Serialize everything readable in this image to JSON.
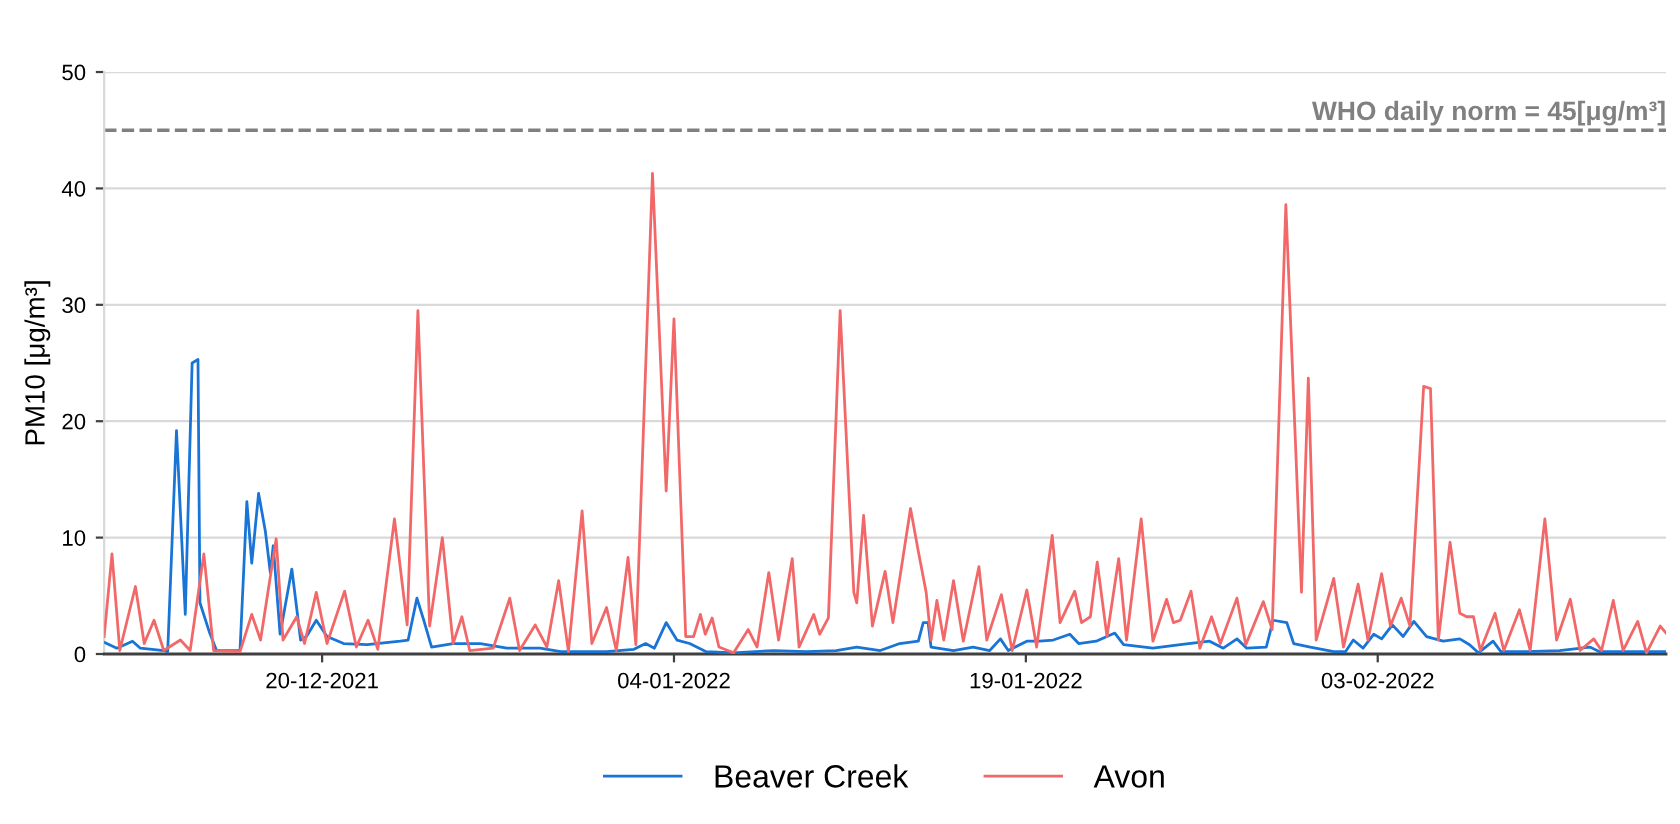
{
  "chart_data": {
    "type": "line",
    "ylabel": "PM10 [μg/m³]",
    "xlim": [
      "2021-12-10T17:00",
      "2022-02-15T07:00"
    ],
    "xticks": [
      {
        "value": "2021-12-20",
        "label": "20-12-2021"
      },
      {
        "value": "2022-01-04",
        "label": "04-01-2022"
      },
      {
        "value": "2022-01-19",
        "label": "19-01-2022"
      },
      {
        "value": "2022-02-03",
        "label": "03-02-2022"
      }
    ],
    "ylim": [
      0,
      50
    ],
    "yticks": [
      0,
      10,
      20,
      30,
      40,
      50
    ],
    "grid": "y",
    "legend": "bottom",
    "marker": "none",
    "line_style": "solid",
    "ref_lines": [
      {
        "axis": "y",
        "value": 45,
        "label": "WHO daily norm = 45[μg/m³]",
        "color": "#808080",
        "line_style": "dashed"
      }
    ],
    "series": [
      {
        "name": "Beaver Creek",
        "color": "#1874d6",
        "x": [
          "2021-12-10T17:00",
          "2021-12-11T06:00",
          "2021-12-11T22:00",
          "2021-12-12T06:00",
          "2021-12-13T06:00",
          "2021-12-13T10:00",
          "2021-12-13T19:00",
          "2021-12-14T04:00",
          "2021-12-14T11:00",
          "2021-12-14T17:00",
          "2021-12-14T19:00",
          "2021-12-15T05:00",
          "2021-12-15T12:00",
          "2021-12-16T12:00",
          "2021-12-16T19:00",
          "2021-12-17T00:00",
          "2021-12-17T07:00",
          "2021-12-17T14:00",
          "2021-12-17T19:00",
          "2021-12-17T22:00",
          "2021-12-18T05:00",
          "2021-12-18T17:00",
          "2021-12-19T02:00",
          "2021-12-19T08:00",
          "2021-12-19T18:00",
          "2021-12-20T05:00",
          "2021-12-20T22:00",
          "2021-12-21T22:00",
          "2021-12-23T08:00",
          "2021-12-23T16:00",
          "2021-12-24T01:00",
          "2021-12-24T08:00",
          "2021-12-24T16:00",
          "2021-12-25T14:00",
          "2021-12-26T18:00",
          "2021-12-27T21:00",
          "2021-12-29T07:00",
          "2021-12-30T04:00",
          "2022-01-01T03:00",
          "2022-01-02T07:00",
          "2022-01-02T19:00",
          "2022-01-03T04:00",
          "2022-01-03T16:00",
          "2022-01-04T03:00",
          "2022-01-04T16:00",
          "2022-01-05T09:00",
          "2022-01-06T13:00",
          "2022-01-08T06:00",
          "2022-01-09T16:00",
          "2022-01-10T22:00",
          "2022-01-11T19:00",
          "2022-01-12T19:00",
          "2022-01-13T15:00",
          "2022-01-14T10:00",
          "2022-01-14T15:00",
          "2022-01-14T20:00",
          "2022-01-14T23:00",
          "2022-01-15T22:00",
          "2022-01-16T18:00",
          "2022-01-17T11:00",
          "2022-01-17T22:00",
          "2022-01-18T06:00",
          "2022-01-19T01:00",
          "2022-01-19T14:00",
          "2022-01-20T04:00",
          "2022-01-20T21:00",
          "2022-01-21T06:00",
          "2022-01-22T00:00",
          "2022-01-22T19:00",
          "2022-01-23T04:00",
          "2022-01-24T10:00",
          "2022-01-25T14:00",
          "2022-01-26T20:00",
          "2022-01-27T10:00",
          "2022-01-28T00:00",
          "2022-01-28T10:00",
          "2022-01-29T06:00",
          "2022-01-29T13:00",
          "2022-01-30T03:00",
          "2022-01-30T10:00",
          "2022-01-31T03:00",
          "2022-02-01T03:00",
          "2022-02-01T15:00",
          "2022-02-01T23:00",
          "2022-02-02T09:00",
          "2022-02-02T20:00",
          "2022-02-03T04:00",
          "2022-02-03T15:00",
          "2022-02-04T02:00",
          "2022-02-04T13:00",
          "2022-02-05T02:00",
          "2022-02-05T19:00",
          "2022-02-06T12:00",
          "2022-02-06T22:00",
          "2022-02-07T07:00",
          "2022-02-07T22:00",
          "2022-02-08T06:00",
          "2022-02-09T08:00",
          "2022-02-10T18:00",
          "2022-02-12T01:00",
          "2022-02-12T11:00",
          "2022-02-15T07:00"
        ],
        "values": [
          1.0,
          0.5,
          1.1,
          0.5,
          0.3,
          0.2,
          19.2,
          3.4,
          25.0,
          25.3,
          4.4,
          1.8,
          0.3,
          0.3,
          13.1,
          7.8,
          13.8,
          10.5,
          7.0,
          9.3,
          1.7,
          7.3,
          1.2,
          1.5,
          2.9,
          1.5,
          0.9,
          0.8,
          1.1,
          1.2,
          4.8,
          2.9,
          0.6,
          0.9,
          0.9,
          0.5,
          0.5,
          0.2,
          0.2,
          0.4,
          0.9,
          0.5,
          2.7,
          1.2,
          0.9,
          0.2,
          0.1,
          0.3,
          0.2,
          0.3,
          0.6,
          0.3,
          0.9,
          1.1,
          2.7,
          2.7,
          0.6,
          0.3,
          0.6,
          0.3,
          1.3,
          0.3,
          1.1,
          1.1,
          1.2,
          1.7,
          0.9,
          1.1,
          1.8,
          0.8,
          0.5,
          0.8,
          1.1,
          0.5,
          1.3,
          0.5,
          0.6,
          2.9,
          2.7,
          0.9,
          0.6,
          0.2,
          0.2,
          1.2,
          0.5,
          1.7,
          1.3,
          2.5,
          1.5,
          2.8,
          1.5,
          1.1,
          1.3,
          0.8,
          0.1,
          1.1,
          0.2,
          0.2,
          0.3,
          0.6,
          0.2,
          0.2
        ]
      },
      {
        "name": "Avon",
        "color": "#f26868",
        "x": [
          "2021-12-10T17:00",
          "2021-12-11T01:00",
          "2021-12-11T09:00",
          "2021-12-12T01:00",
          "2021-12-12T10:00",
          "2021-12-12T20:00",
          "2021-12-13T06:00",
          "2021-12-13T23:00",
          "2021-12-14T09:00",
          "2021-12-14T23:00",
          "2021-12-15T09:00",
          "2021-12-16T12:00",
          "2021-12-17T00:00",
          "2021-12-17T09:00",
          "2021-12-18T01:00",
          "2021-12-18T08:00",
          "2021-12-18T22:00",
          "2021-12-19T06:00",
          "2021-12-19T18:00",
          "2021-12-20T05:00",
          "2021-12-20T23:00",
          "2021-12-21T11:00",
          "2021-12-21T23:00",
          "2021-12-22T09:00",
          "2021-12-23T02:00",
          "2021-12-23T15:00",
          "2021-12-24T02:00",
          "2021-12-24T14:00",
          "2021-12-25T03:00",
          "2021-12-25T14:00",
          "2021-12-25T23:00",
          "2021-12-26T07:00",
          "2021-12-27T07:00",
          "2021-12-28T00:00",
          "2021-12-28T10:00",
          "2021-12-29T02:00",
          "2021-12-29T14:00",
          "2021-12-30T02:00",
          "2021-12-30T12:00",
          "2021-12-31T02:00",
          "2021-12-31T12:00",
          "2022-01-01T03:00",
          "2022-01-01T13:00",
          "2022-01-02T01:00",
          "2022-01-02T09:00",
          "2022-01-03T02:00",
          "2022-01-03T16:00",
          "2022-01-04T00:00",
          "2022-01-04T12:00",
          "2022-01-04T20:00",
          "2022-01-05T03:00",
          "2022-01-05T08:00",
          "2022-01-05T15:00",
          "2022-01-05T22:00",
          "2022-01-06T13:00",
          "2022-01-07T04:00",
          "2022-01-07T13:00",
          "2022-01-08T01:00",
          "2022-01-08T11:00",
          "2022-01-09T01:00",
          "2022-01-09T08:00",
          "2022-01-09T23:00",
          "2022-01-10T05:00",
          "2022-01-10T14:00",
          "2022-01-11T02:00",
          "2022-01-11T16:00",
          "2022-01-11T19:00",
          "2022-01-12T02:00",
          "2022-01-12T11:00",
          "2022-01-13T00:00",
          "2022-01-13T08:00",
          "2022-01-14T02:00",
          "2022-01-14T10:00",
          "2022-01-14T18:00",
          "2022-01-14T23:00",
          "2022-01-15T05:00",
          "2022-01-15T12:00",
          "2022-01-15T22:00",
          "2022-01-16T08:00",
          "2022-01-17T00:00",
          "2022-01-17T08:00",
          "2022-01-17T23:00",
          "2022-01-18T10:00",
          "2022-01-19T01:00",
          "2022-01-19T11:00",
          "2022-01-20T03:00",
          "2022-01-20T11:00",
          "2022-01-21T02:00",
          "2022-01-21T09:00",
          "2022-01-21T18:00",
          "2022-01-22T01:00",
          "2022-01-22T11:00",
          "2022-01-22T23:00",
          "2022-01-23T07:00",
          "2022-01-23T22:00",
          "2022-01-24T10:00",
          "2022-01-25T00:00",
          "2022-01-25T07:00",
          "2022-01-25T14:00",
          "2022-01-26T01:00",
          "2022-01-26T10:00",
          "2022-01-26T22:00",
          "2022-01-27T07:00",
          "2022-01-28T00:00",
          "2022-01-28T09:00",
          "2022-01-29T03:00",
          "2022-01-29T12:00",
          "2022-01-30T02:00",
          "2022-01-30T18:00",
          "2022-01-31T01:00",
          "2022-01-31T09:00",
          "2022-02-01T03:00",
          "2022-02-01T13:00",
          "2022-02-02T04:00",
          "2022-02-02T14:00",
          "2022-02-03T04:00",
          "2022-02-03T13:00",
          "2022-02-04T00:00",
          "2022-02-04T09:00",
          "2022-02-04T23:00",
          "2022-02-05T06:00",
          "2022-02-05T14:00",
          "2022-02-06T02:00",
          "2022-02-06T12:00",
          "2022-02-06T19:00",
          "2022-02-07T02:00",
          "2022-02-07T09:00",
          "2022-02-08T00:00",
          "2022-02-08T09:00",
          "2022-02-09T01:00",
          "2022-02-09T12:00",
          "2022-02-10T03:00",
          "2022-02-10T15:00",
          "2022-02-11T05:00",
          "2022-02-11T15:00",
          "2022-02-12T05:00",
          "2022-02-12T13:00",
          "2022-02-13T01:00",
          "2022-02-13T11:00",
          "2022-02-14T02:00",
          "2022-02-14T11:00",
          "2022-02-15T01:00",
          "2022-02-15T07:00"
        ],
        "values": [
          1.5,
          8.6,
          0.3,
          5.8,
          0.9,
          2.9,
          0.3,
          1.2,
          0.3,
          8.6,
          0.3,
          0.2,
          3.4,
          1.2,
          9.9,
          1.2,
          3.2,
          0.9,
          5.3,
          0.9,
          5.4,
          0.6,
          2.9,
          0.4,
          11.6,
          2.5,
          29.5,
          2.4,
          10.0,
          0.9,
          3.2,
          0.3,
          0.5,
          4.8,
          0.3,
          2.5,
          0.6,
          6.3,
          0.2,
          12.3,
          0.9,
          4.0,
          0.3,
          8.3,
          0.8,
          41.3,
          14.0,
          28.8,
          1.5,
          1.5,
          3.4,
          1.7,
          3.1,
          0.6,
          0.1,
          2.1,
          0.6,
          7.0,
          1.2,
          8.2,
          0.6,
          3.4,
          1.7,
          3.1,
          29.5,
          5.3,
          4.4,
          11.9,
          2.4,
          7.1,
          2.7,
          12.5,
          8.8,
          5.3,
          1.2,
          4.6,
          1.2,
          6.3,
          1.1,
          7.5,
          1.2,
          5.1,
          0.3,
          5.5,
          0.6,
          10.2,
          2.7,
          5.4,
          2.7,
          3.2,
          7.9,
          1.5,
          8.2,
          1.2,
          11.6,
          1.1,
          4.7,
          2.7,
          2.9,
          5.4,
          0.5,
          3.2,
          0.9,
          4.8,
          0.8,
          4.5,
          2.1,
          38.6,
          5.3,
          23.7,
          1.2,
          6.5,
          0.6,
          6.0,
          1.2,
          6.9,
          2.4,
          4.8,
          2.4,
          23.0,
          22.8,
          1.2,
          9.6,
          3.5,
          3.2,
          3.2,
          0.3,
          3.5,
          0.3,
          3.8,
          0.3,
          11.6,
          1.2,
          4.7,
          0.3,
          1.3,
          0.3,
          4.6,
          0.3,
          2.8,
          0.1,
          2.4,
          1.8
        ]
      }
    ]
  }
}
